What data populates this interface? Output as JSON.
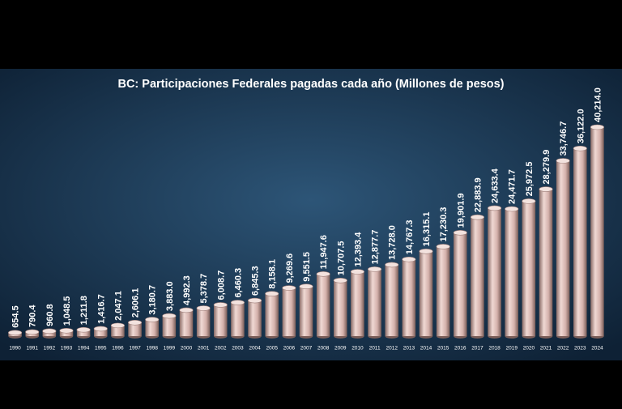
{
  "chart_data": {
    "type": "bar",
    "title": "BC: Participaciones Federales pagadas cada año (Millones de pesos)",
    "categories": [
      "1990",
      "1991",
      "1992",
      "1993",
      "1994",
      "1995",
      "1996",
      "1997",
      "1998",
      "1999",
      "2000",
      "2001",
      "2002",
      "2003",
      "2004",
      "2005",
      "2006",
      "2007",
      "2008",
      "2009",
      "2010",
      "2011",
      "2012",
      "2013",
      "2014",
      "2015",
      "2016",
      "2017",
      "2018",
      "2019",
      "2020",
      "2021",
      "2022",
      "2023",
      "2024"
    ],
    "values": [
      654.5,
      790.4,
      960.8,
      1048.5,
      1211.8,
      1416.7,
      2047.1,
      2606.1,
      3180.7,
      3883.0,
      4992.3,
      5378.7,
      6008.7,
      6460.3,
      6845.3,
      8158.1,
      9269.6,
      9551.5,
      11947.6,
      10707.5,
      12393.4,
      12877.7,
      13728.0,
      14767.3,
      16315.1,
      17230.3,
      19901.9,
      22883.9,
      24633.4,
      24471.7,
      25972.5,
      28279.9,
      33746.7,
      36122.0,
      40214.0
    ],
    "value_labels": [
      "654.5",
      "790.4",
      "960.8",
      "1,048.5",
      "1,211.8",
      "1,416.7",
      "2,047.1",
      "2,606.1",
      "3,180.7",
      "3,883.0",
      "4,992.3",
      "5,378.7",
      "6,008.7",
      "6,460.3",
      "6,845.3",
      "8,158.1",
      "9,269.6",
      "9,551.5",
      "11,947.6",
      "10,707.5",
      "12,393.4",
      "12,877.7",
      "13,728.0",
      "14,767.3",
      "16,315.1",
      "17,230.3",
      "19,901.9",
      "22,883.9",
      "24,633.4",
      "24,471.7",
      "25,972.5",
      "28,279.9",
      "33,746.7",
      "36,122.0",
      "40,214.0"
    ],
    "color": "#d9b8b3"
  }
}
